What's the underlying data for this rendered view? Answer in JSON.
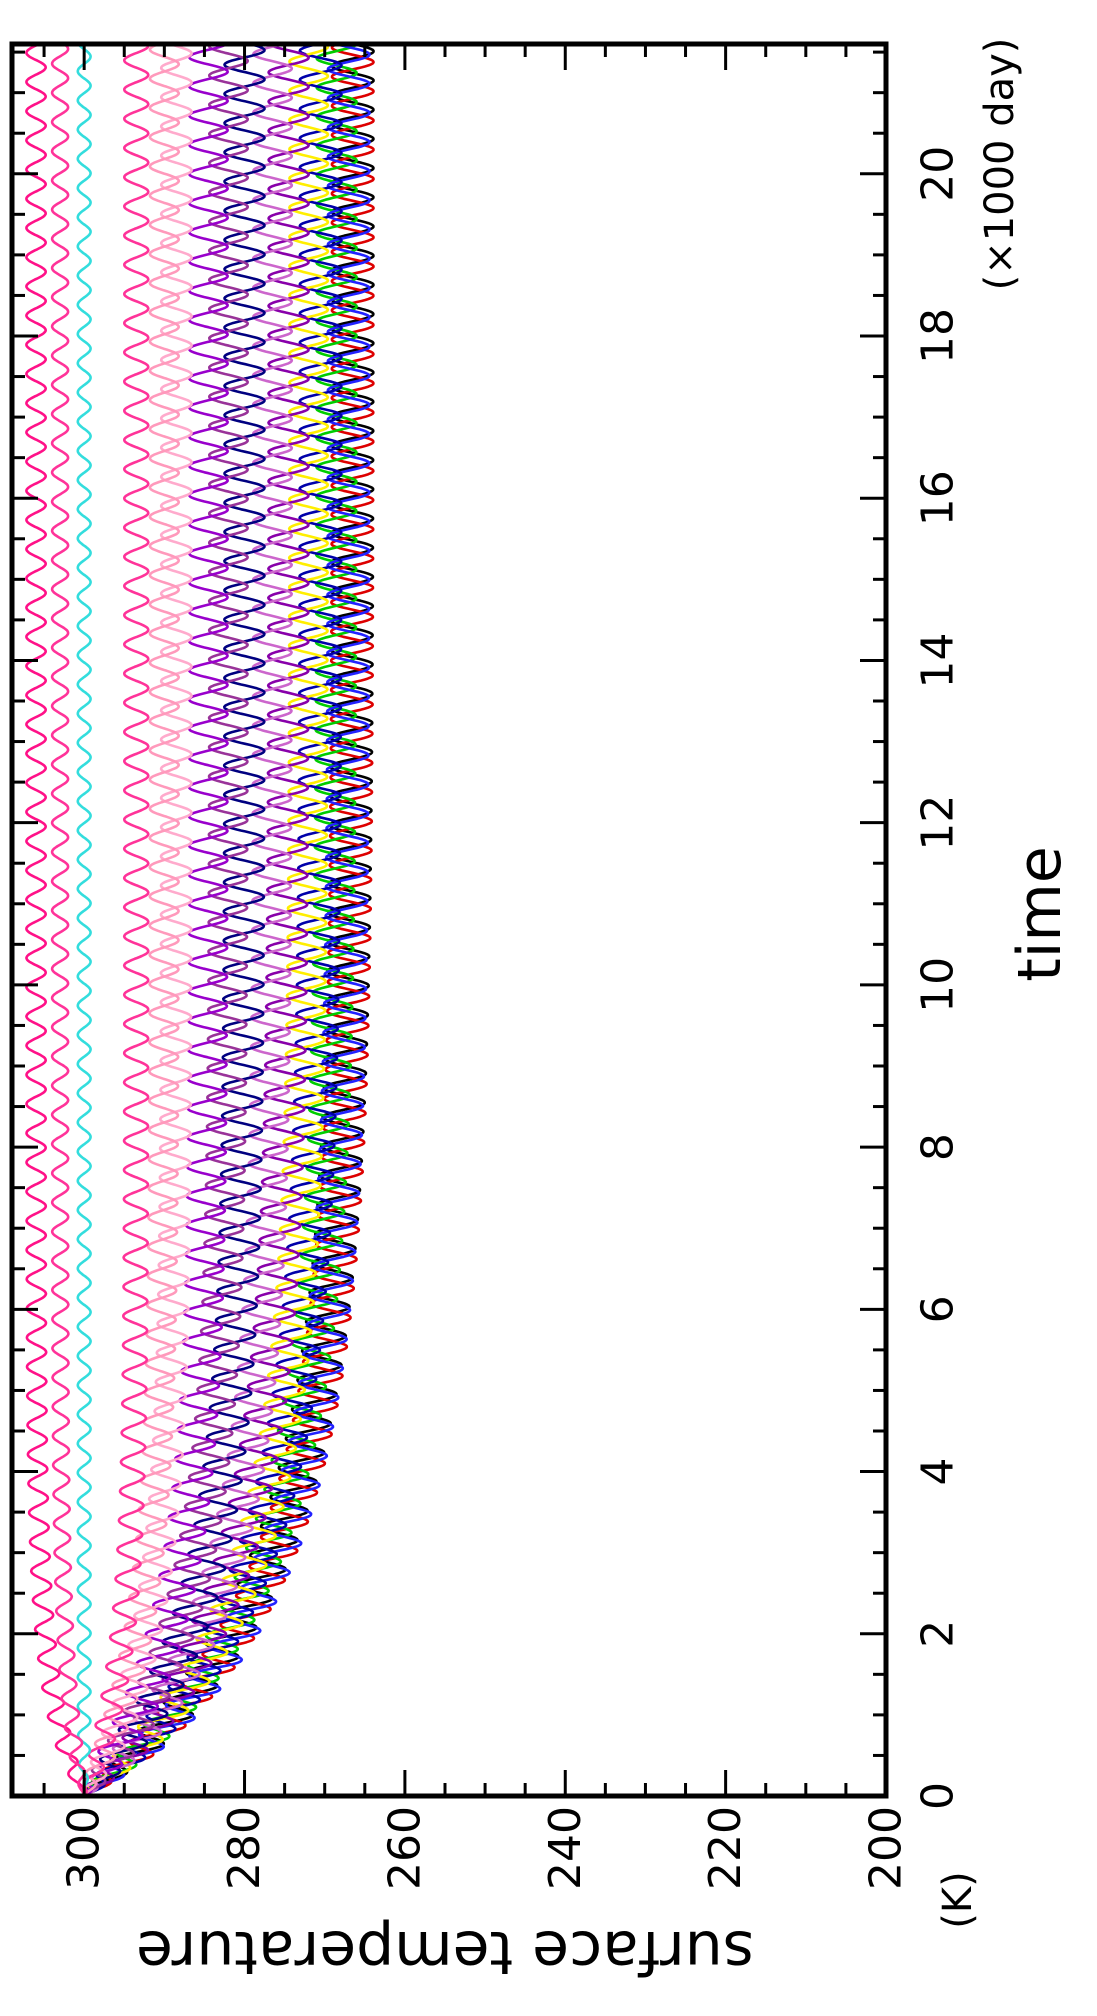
{
  "chart_data": {
    "type": "line",
    "orientation": "rotated-90",
    "xlabel": "time",
    "x_unit": "(×1000 day)",
    "ylabel": "surface temperature",
    "y_unit": "(K)",
    "xlim": [
      0,
      21.6
    ],
    "ylim": [
      200,
      309
    ],
    "x_ticks": [
      0,
      2,
      4,
      6,
      8,
      10,
      12,
      14,
      16,
      18,
      20
    ],
    "y_ticks": [
      200,
      220,
      240,
      260,
      280,
      300
    ],
    "x_tick_labels": [
      "0",
      "2",
      "4",
      "6",
      "8",
      "10",
      "12",
      "14",
      "16",
      "18",
      "20"
    ],
    "y_tick_labels": [
      "200",
      "220",
      "240",
      "260",
      "280",
      "300"
    ],
    "grid": false,
    "legend": "none",
    "oscillation_period": 0.36,
    "series": [
      {
        "color": "#000000",
        "start": 300,
        "equilibrium": 266.5,
        "amplitude": 2.6,
        "tau": 2.5
      },
      {
        "color": "#dd0000",
        "start": 300,
        "equilibrium": 266.5,
        "amplitude": 2.6,
        "tau": 2.4
      },
      {
        "color": "#00cc00",
        "start": 300,
        "equilibrium": 268.5,
        "amplitude": 2.5,
        "tau": 2.4
      },
      {
        "color": "#2222ff",
        "start": 300,
        "equilibrium": 267.0,
        "amplitude": 2.6,
        "tau": 2.3
      },
      {
        "color": "#0000aa",
        "start": 300,
        "equilibrium": 270.5,
        "amplitude": 2.6,
        "tau": 2.3
      },
      {
        "color": "#ffee00",
        "start": 300,
        "equilibrium": 272.0,
        "amplitude": 2.4,
        "tau": 2.2
      },
      {
        "color": "#8800aa",
        "start": 300,
        "equilibrium": 274.5,
        "amplitude": 2.5,
        "tau": 2.2
      },
      {
        "color": "#cc66cc",
        "start": 300,
        "equilibrium": 276.5,
        "amplitude": 2.4,
        "tau": 2.1
      },
      {
        "color": "#000080",
        "start": 300,
        "equilibrium": 280.0,
        "amplitude": 2.5,
        "tau": 2.0
      },
      {
        "color": "#993399",
        "start": 300,
        "equilibrium": 282.0,
        "amplitude": 2.4,
        "tau": 2.0
      },
      {
        "color": "#9900cc",
        "start": 300,
        "equilibrium": 284.5,
        "amplitude": 2.4,
        "tau": 1.9
      },
      {
        "color": "#ffaacc",
        "start": 300,
        "equilibrium": 288.5,
        "amplitude": 1.9,
        "tau": 1.8
      },
      {
        "color": "#ff99bb",
        "start": 300,
        "equilibrium": 290.0,
        "amplitude": 1.8,
        "tau": 1.8
      },
      {
        "color": "#ff3399",
        "start": 300,
        "equilibrium": 293.5,
        "amplitude": 1.5,
        "tau": 1.5
      },
      {
        "color": "#33dddd",
        "start": 300,
        "equilibrium": 300.0,
        "amplitude": 0.8,
        "tau": 1.2
      },
      {
        "color": "#ff1188",
        "start": 300,
        "equilibrium": 306.0,
        "amplitude": 1.2,
        "tau": 1.2
      },
      {
        "color": "#ff3399",
        "start": 300,
        "equilibrium": 303.0,
        "amplitude": 1.0,
        "tau": 1.3
      }
    ]
  }
}
